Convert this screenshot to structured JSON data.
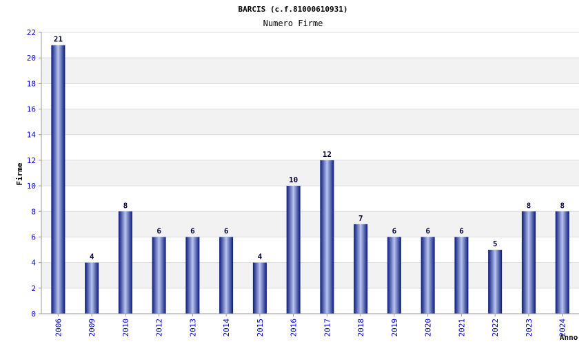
{
  "chart_data": {
    "type": "bar",
    "title": "BARCIS (c.f.81000610931)",
    "subtitle": "Numero Firme",
    "xlabel": "Anno",
    "ylabel": "Firme",
    "categories": [
      "2006",
      "2009",
      "2010",
      "2012",
      "2013",
      "2014",
      "2015",
      "2016",
      "2017",
      "2018",
      "2019",
      "2020",
      "2021",
      "2022",
      "2023",
      "2024"
    ],
    "values": [
      21,
      4,
      8,
      6,
      6,
      6,
      4,
      10,
      12,
      7,
      6,
      6,
      6,
      5,
      8,
      8
    ],
    "ylim": [
      0,
      22
    ],
    "yticks": [
      0,
      2,
      4,
      6,
      8,
      10,
      12,
      14,
      16,
      18,
      20,
      22
    ],
    "grid": true,
    "colors": {
      "bar_dark": "#0a1a7a",
      "bar_light": "#b8c4f0",
      "band_alt": "#f2f2f2",
      "tick_text": "#0000cc"
    }
  }
}
